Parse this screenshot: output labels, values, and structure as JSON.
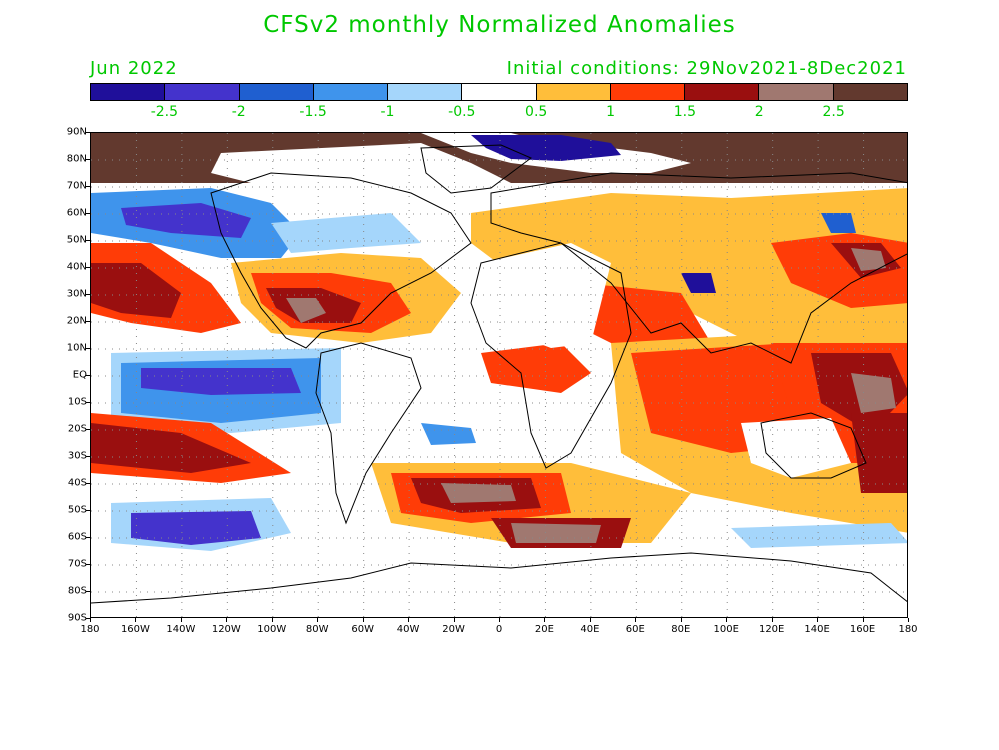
{
  "title": "CFSv2 monthly Normalized Anomalies",
  "month_label": "Jun 2022",
  "init_label": "Initial conditions: 29Nov2021-8Dec2021",
  "colorbar": {
    "colors": [
      "#1f0f9a",
      "#4433cc",
      "#1f5fd0",
      "#3f94ec",
      "#a5d6fb",
      "#ffffff",
      "#ffbe3a",
      "#ff3c07",
      "#9a0f0f",
      "#a07870",
      "#62392e"
    ],
    "labels": [
      "-2.5",
      "-2",
      "-1.5",
      "-1",
      "-0.5",
      "0.5",
      "1",
      "1.5",
      "2",
      "2.5"
    ]
  },
  "lat_labels": [
    "90N",
    "80N",
    "70N",
    "60N",
    "50N",
    "40N",
    "30N",
    "20N",
    "10N",
    "EQ",
    "10S",
    "20S",
    "30S",
    "40S",
    "50S",
    "60S",
    "70S",
    "80S",
    "90S"
  ],
  "lon_labels": [
    "180",
    "160W",
    "140W",
    "120W",
    "100W",
    "80W",
    "60W",
    "40W",
    "20W",
    "0",
    "20E",
    "40E",
    "60E",
    "80E",
    "100E",
    "120E",
    "140E",
    "160E",
    "180"
  ]
}
